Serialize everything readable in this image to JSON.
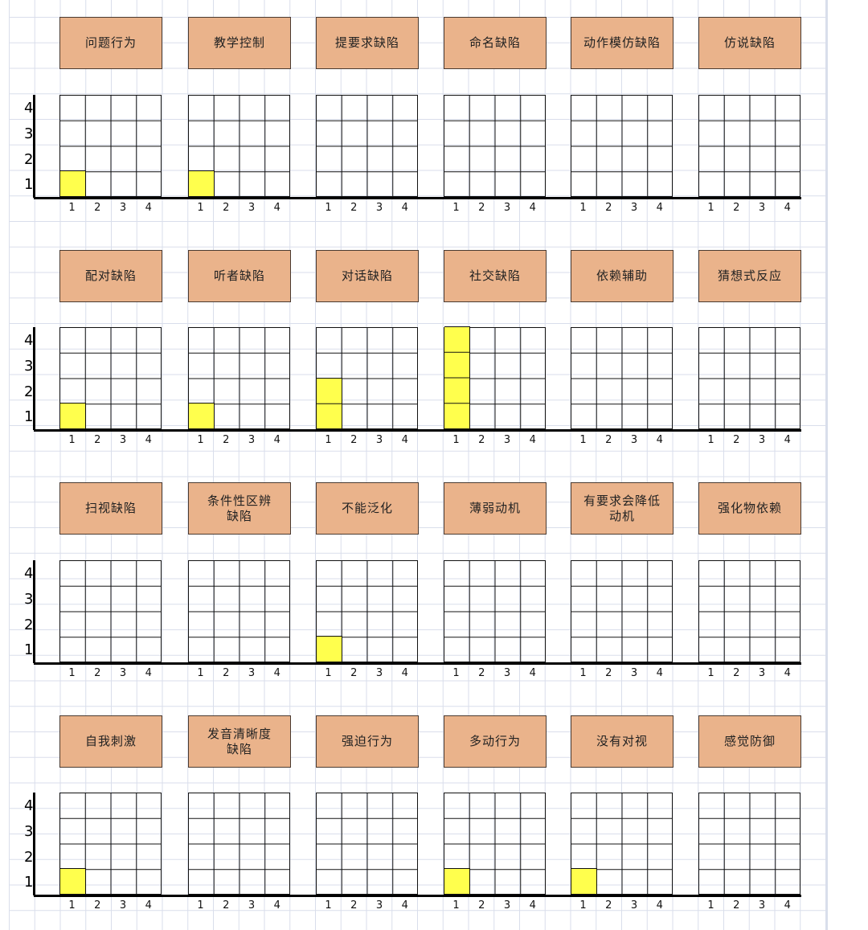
{
  "axis": {
    "y_ticks": [
      "1",
      "2",
      "3",
      "4"
    ],
    "x_ticks": [
      "1",
      "2",
      "3",
      "4"
    ]
  },
  "colors": {
    "label_fill": "#eab38b",
    "bar_fill": "#ffff4d",
    "grid_line": "#d9deeb"
  },
  "rows": [
    {
      "panels": [
        {
          "label": "问题行为",
          "value": 1
        },
        {
          "label": "教学控制",
          "value": 1
        },
        {
          "label": "提要求缺陷",
          "value": 0
        },
        {
          "label": "命名缺陷",
          "value": 0
        },
        {
          "label": "动作模仿缺陷",
          "value": 0
        },
        {
          "label": "仿说缺陷",
          "value": 0
        }
      ]
    },
    {
      "panels": [
        {
          "label": "配对缺陷",
          "value": 1
        },
        {
          "label": "听者缺陷",
          "value": 1
        },
        {
          "label": "对话缺陷",
          "value": 2
        },
        {
          "label": "社交缺陷",
          "value": 4
        },
        {
          "label": "依赖辅助",
          "value": 0
        },
        {
          "label": "猜想式反应",
          "value": 0
        }
      ]
    },
    {
      "panels": [
        {
          "label": "扫视缺陷",
          "value": 0
        },
        {
          "label": "条件性区辨\n缺陷",
          "value": 0
        },
        {
          "label": "不能泛化",
          "value": 1
        },
        {
          "label": "薄弱动机",
          "value": 0
        },
        {
          "label": "有要求会降低\n动机",
          "value": 0
        },
        {
          "label": "强化物依赖",
          "value": 0
        }
      ]
    },
    {
      "panels": [
        {
          "label": "自我刺激",
          "value": 1
        },
        {
          "label": "发音清晰度\n缺陷",
          "value": 0
        },
        {
          "label": "强迫行为",
          "value": 0
        },
        {
          "label": "多动行为",
          "value": 1
        },
        {
          "label": "没有对视",
          "value": 1
        },
        {
          "label": "感觉防御",
          "value": 0
        }
      ]
    }
  ]
}
